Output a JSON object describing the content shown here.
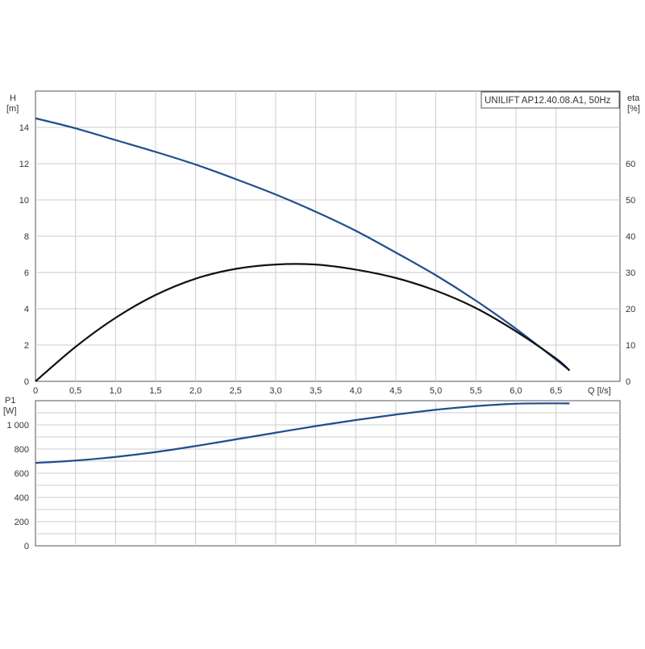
{
  "chart_data": [
    {
      "type": "line",
      "title": "UNILIFT AP12.40.08.A1, 50Hz",
      "xlabel": "Q [l/s]",
      "x_axis_label": "Q [l/s]",
      "xlim": [
        0,
        7.3
      ],
      "x_ticks": [
        0,
        0.5,
        1,
        1.5,
        2,
        2.5,
        3,
        3.5,
        4,
        4.5,
        5,
        5.5,
        6,
        6.5
      ],
      "x_tick_labels": [
        "0",
        "0,5",
        "1,0",
        "1,5",
        "2,0",
        "2,5",
        "3,0",
        "3,5",
        "4,0",
        "4,5",
        "5,0",
        "5,5",
        "6,0",
        "6,5"
      ],
      "ylabel_left": "H",
      "ylabel_left_unit": "[m]",
      "ylim_left": [
        0,
        16
      ],
      "y_ticks_left": [
        0,
        2,
        4,
        6,
        8,
        10,
        12,
        14
      ],
      "y_tick_labels_left": [
        "0",
        "2",
        "4",
        "6",
        "8",
        "10",
        "12",
        "14"
      ],
      "ylabel_right": "eta",
      "ylabel_right_unit": "[%]",
      "ylim_right": [
        0,
        80
      ],
      "y_ticks_right": [
        0,
        10,
        20,
        30,
        40,
        50,
        60
      ],
      "y_tick_labels_right": [
        "0",
        "10",
        "20",
        "30",
        "40",
        "50",
        "60"
      ],
      "grid": true,
      "legend": "top-right",
      "series": [
        {
          "name": "",
          "axis": "left",
          "color": "#1f4e8c",
          "x": [
            0,
            0.5,
            1.0,
            1.5,
            2.0,
            2.5,
            3.0,
            3.5,
            4.0,
            4.5,
            5.0,
            5.5,
            6.0,
            6.5,
            6.67
          ],
          "y": [
            14.5,
            13.95,
            13.3,
            12.65,
            11.95,
            11.15,
            10.3,
            9.35,
            8.3,
            7.1,
            5.85,
            4.45,
            2.9,
            1.2,
            0.6
          ]
        },
        {
          "name": "",
          "axis": "right",
          "color": "#111111",
          "x": [
            0,
            0.5,
            1.0,
            1.5,
            2.0,
            2.5,
            3.0,
            3.5,
            4.0,
            4.5,
            5.0,
            5.5,
            6.0,
            6.5,
            6.67
          ],
          "y": [
            0,
            9.5,
            17.5,
            23.8,
            28.3,
            31.0,
            32.2,
            32.2,
            30.8,
            28.5,
            25.0,
            20.2,
            13.8,
            6.3,
            3.0
          ]
        }
      ]
    },
    {
      "type": "line",
      "title": "",
      "xlabel": "",
      "xlim": [
        0,
        7.3
      ],
      "x_ticks": [
        0,
        0.5,
        1,
        1.5,
        2,
        2.5,
        3,
        3.5,
        4,
        4.5,
        5,
        5.5,
        6,
        6.5
      ],
      "ylabel": "P1",
      "ylabel_unit": "[W]",
      "ylim": [
        0,
        1200
      ],
      "y_ticks": [
        0,
        200,
        400,
        600,
        800,
        1000
      ],
      "y_tick_labels": [
        "0",
        "200",
        "400",
        "600",
        "800",
        "1 000"
      ],
      "grid": true,
      "series": [
        {
          "name": "",
          "color": "#1f4e8c",
          "x": [
            0,
            0.5,
            1.0,
            1.5,
            2.0,
            2.5,
            3.0,
            3.5,
            4.0,
            4.5,
            5.0,
            5.5,
            6.0,
            6.5,
            6.67
          ],
          "y": [
            685,
            705,
            735,
            775,
            825,
            880,
            935,
            990,
            1040,
            1085,
            1125,
            1155,
            1175,
            1178,
            1177
          ]
        }
      ]
    }
  ]
}
